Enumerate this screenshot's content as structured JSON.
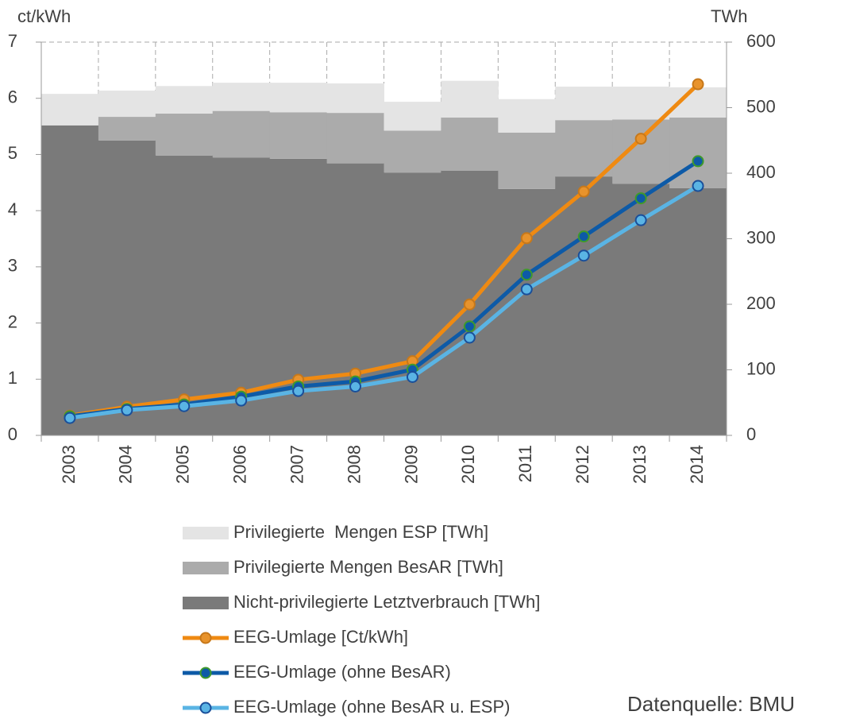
{
  "chart_data": {
    "type": "combo",
    "y_label": "ct/kWh",
    "y2_label": "TWh",
    "annotation": "Datenquelle: BMU",
    "categories": [
      "2003",
      "2004",
      "2005",
      "2006",
      "2007",
      "2008",
      "2009",
      "2010",
      "2011",
      "2012",
      "2013",
      "2014"
    ],
    "series": [
      {
        "name": "Privilegierte  Mengen ESP [TWh]",
        "kind": "area",
        "axis": "y2",
        "color": "#e4e4e4",
        "values": [
          48,
          40,
          42,
          43,
          45,
          45,
          44,
          56,
          51,
          51,
          50,
          46
        ]
      },
      {
        "name": "Privilegierte Mengen BesAR [TWh]",
        "kind": "area",
        "axis": "y2",
        "color": "#ababab",
        "values": [
          0,
          36,
          64,
          71,
          71,
          77,
          64,
          81,
          86,
          86,
          98,
          108
        ]
      },
      {
        "name": "Nicht-privilegierte Letztverbrauch [TWh]",
        "kind": "area",
        "axis": "y2",
        "color": "#7a7a7a",
        "values": [
          473,
          450,
          427,
          424,
          422,
          415,
          401,
          404,
          376,
          395,
          384,
          377
        ]
      },
      {
        "name": "EEG-Umlage [Ct/kWh]",
        "kind": "line",
        "color": "#ef8a12",
        "marker_color": "#e8932c",
        "marker_edge": "#c7781a",
        "values": [
          0.35,
          0.51,
          0.64,
          0.76,
          0.99,
          1.1,
          1.32,
          2.33,
          3.51,
          4.34,
          5.28,
          6.25
        ]
      },
      {
        "name": "EEG-Umlage (ohne BesAR)",
        "kind": "line",
        "color": "#0d5aa7",
        "marker_color": "#0d5aa7",
        "marker_edge": "#3f9a2a",
        "values": [
          0.34,
          0.47,
          0.55,
          0.69,
          0.87,
          0.96,
          1.17,
          1.94,
          2.86,
          3.54,
          4.22,
          4.88
        ]
      },
      {
        "name": "EEG-Umlage (ohne BesAR u. ESP)",
        "kind": "line",
        "color": "#5ab4e4",
        "marker_color": "#5ab4e4",
        "marker_edge": "#1a4f9a",
        "values": [
          0.31,
          0.45,
          0.52,
          0.62,
          0.79,
          0.87,
          1.04,
          1.74,
          2.6,
          3.2,
          3.83,
          4.44
        ]
      }
    ],
    "ylim": [
      0,
      7
    ],
    "yticks": [
      0,
      1,
      2,
      3,
      4,
      5,
      6,
      7
    ],
    "y2lim": [
      0,
      600
    ],
    "y2ticks": [
      0,
      100,
      200,
      300,
      400,
      500,
      600
    ]
  }
}
